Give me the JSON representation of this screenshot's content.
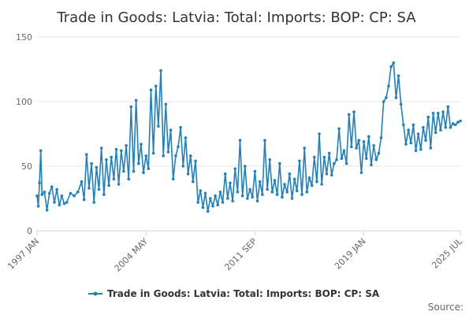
{
  "chart_data": {
    "type": "line",
    "title": "Trade in Goods: Latvia: Total: Imports: BOP: CP: SA",
    "xlabel": "",
    "ylabel": "",
    "ylim": [
      0,
      150
    ],
    "yticks": [
      0,
      50,
      100,
      150
    ],
    "x_tick_labels": [
      "1997 JAN",
      "2004 MAY",
      "2011 SEP",
      "2019 JAN",
      "2025 JUL"
    ],
    "x_tick_dates": [
      "1997-01",
      "2004-05",
      "2011-09",
      "2019-01",
      "2025-07"
    ],
    "x_start": "1997-01",
    "x_end": "2025-07",
    "grid": true,
    "legend_position": "bottom",
    "series": [
      {
        "name": "Trade in Goods: Latvia: Total: Imports: BOP: CP: SA",
        "color": "#1f7fc0",
        "points": [
          [
            "1997-01",
            27
          ],
          [
            "1997-02",
            19
          ],
          [
            "1997-03",
            37
          ],
          [
            "1997-04",
            62
          ],
          [
            "1997-05",
            28
          ],
          [
            "1997-07",
            30
          ],
          [
            "1997-09",
            16
          ],
          [
            "1997-11",
            29
          ],
          [
            "1998-01",
            34
          ],
          [
            "1998-03",
            22
          ],
          [
            "1998-05",
            32
          ],
          [
            "1998-07",
            20
          ],
          [
            "1998-09",
            27
          ],
          [
            "1998-11",
            21
          ],
          [
            "1999-01",
            22
          ],
          [
            "1999-04",
            29
          ],
          [
            "1999-07",
            27
          ],
          [
            "1999-10",
            30
          ],
          [
            "2000-01",
            38
          ],
          [
            "2000-03",
            24
          ],
          [
            "2000-05",
            59
          ],
          [
            "2000-07",
            33
          ],
          [
            "2000-09",
            52
          ],
          [
            "2000-11",
            22
          ],
          [
            "2001-01",
            49
          ],
          [
            "2001-03",
            32
          ],
          [
            "2001-05",
            64
          ],
          [
            "2001-07",
            28
          ],
          [
            "2001-09",
            55
          ],
          [
            "2001-11",
            35
          ],
          [
            "2002-01",
            57
          ],
          [
            "2002-03",
            40
          ],
          [
            "2002-05",
            63
          ],
          [
            "2002-07",
            36
          ],
          [
            "2002-09",
            62
          ],
          [
            "2002-11",
            46
          ],
          [
            "2003-01",
            66
          ],
          [
            "2003-03",
            40
          ],
          [
            "2003-05",
            96
          ],
          [
            "2003-07",
            46
          ],
          [
            "2003-09",
            101
          ],
          [
            "2003-11",
            52
          ],
          [
            "2004-01",
            67
          ],
          [
            "2004-03",
            45
          ],
          [
            "2004-05",
            58
          ],
          [
            "2004-07",
            48
          ],
          [
            "2004-09",
            109
          ],
          [
            "2004-11",
            60
          ],
          [
            "2005-01",
            112
          ],
          [
            "2005-03",
            81
          ],
          [
            "2005-05",
            124
          ],
          [
            "2005-07",
            58
          ],
          [
            "2005-09",
            98
          ],
          [
            "2005-11",
            61
          ],
          [
            "2006-01",
            78
          ],
          [
            "2006-03",
            40
          ],
          [
            "2006-05",
            58
          ],
          [
            "2006-07",
            65
          ],
          [
            "2006-09",
            80
          ],
          [
            "2006-11",
            50
          ],
          [
            "2007-01",
            72
          ],
          [
            "2007-03",
            44
          ],
          [
            "2007-05",
            58
          ],
          [
            "2007-07",
            38
          ],
          [
            "2007-09",
            54
          ],
          [
            "2007-11",
            22
          ],
          [
            "2008-01",
            31
          ],
          [
            "2008-03",
            18
          ],
          [
            "2008-05",
            29
          ],
          [
            "2008-07",
            15
          ],
          [
            "2008-09",
            25
          ],
          [
            "2008-11",
            19
          ],
          [
            "2009-01",
            27
          ],
          [
            "2009-03",
            20
          ],
          [
            "2009-05",
            30
          ],
          [
            "2009-07",
            22
          ],
          [
            "2009-09",
            44
          ],
          [
            "2009-11",
            25
          ],
          [
            "2010-01",
            37
          ],
          [
            "2010-03",
            23
          ],
          [
            "2010-05",
            48
          ],
          [
            "2010-07",
            30
          ],
          [
            "2010-09",
            70
          ],
          [
            "2010-11",
            27
          ],
          [
            "2011-01",
            50
          ],
          [
            "2011-03",
            25
          ],
          [
            "2011-05",
            32
          ],
          [
            "2011-07",
            26
          ],
          [
            "2011-09",
            46
          ],
          [
            "2011-11",
            23
          ],
          [
            "2012-01",
            38
          ],
          [
            "2012-03",
            28
          ],
          [
            "2012-05",
            70
          ],
          [
            "2012-07",
            32
          ],
          [
            "2012-09",
            55
          ],
          [
            "2012-11",
            30
          ],
          [
            "2013-01",
            39
          ],
          [
            "2013-03",
            28
          ],
          [
            "2013-05",
            52
          ],
          [
            "2013-07",
            26
          ],
          [
            "2013-09",
            36
          ],
          [
            "2013-11",
            30
          ],
          [
            "2014-01",
            44
          ],
          [
            "2014-03",
            25
          ],
          [
            "2014-05",
            40
          ],
          [
            "2014-07",
            31
          ],
          [
            "2014-09",
            54
          ],
          [
            "2014-11",
            28
          ],
          [
            "2015-01",
            64
          ],
          [
            "2015-03",
            30
          ],
          [
            "2015-05",
            41
          ],
          [
            "2015-07",
            35
          ],
          [
            "2015-09",
            57
          ],
          [
            "2015-11",
            38
          ],
          [
            "2016-01",
            75
          ],
          [
            "2016-03",
            36
          ],
          [
            "2016-05",
            57
          ],
          [
            "2016-07",
            44
          ],
          [
            "2016-09",
            60
          ],
          [
            "2016-11",
            43
          ],
          [
            "2017-01",
            52
          ],
          [
            "2017-03",
            55
          ],
          [
            "2017-05",
            79
          ],
          [
            "2017-07",
            56
          ],
          [
            "2017-09",
            62
          ],
          [
            "2017-11",
            52
          ],
          [
            "2018-01",
            90
          ],
          [
            "2018-03",
            65
          ],
          [
            "2018-05",
            92
          ],
          [
            "2018-07",
            64
          ],
          [
            "2018-09",
            70
          ],
          [
            "2018-11",
            45
          ],
          [
            "2019-01",
            69
          ],
          [
            "2019-03",
            56
          ],
          [
            "2019-05",
            73
          ],
          [
            "2019-07",
            51
          ],
          [
            "2019-09",
            66
          ],
          [
            "2019-11",
            55
          ],
          [
            "2020-01",
            60
          ],
          [
            "2020-03",
            72
          ],
          [
            "2020-05",
            100
          ],
          [
            "2020-07",
            103
          ],
          [
            "2020-09",
            112
          ],
          [
            "2020-11",
            127
          ],
          [
            "2021-01",
            130
          ],
          [
            "2021-03",
            103
          ],
          [
            "2021-05",
            120
          ],
          [
            "2021-07",
            98
          ],
          [
            "2021-09",
            82
          ],
          [
            "2021-11",
            67
          ],
          [
            "2022-01",
            78
          ],
          [
            "2022-03",
            68
          ],
          [
            "2022-05",
            82
          ],
          [
            "2022-07",
            62
          ],
          [
            "2022-09",
            75
          ],
          [
            "2022-11",
            63
          ],
          [
            "2023-01",
            80
          ],
          [
            "2023-03",
            70
          ],
          [
            "2023-05",
            88
          ],
          [
            "2023-07",
            64
          ],
          [
            "2023-09",
            91
          ],
          [
            "2023-11",
            76
          ],
          [
            "2024-01",
            91
          ],
          [
            "2024-03",
            78
          ],
          [
            "2024-05",
            92
          ],
          [
            "2024-07",
            80
          ],
          [
            "2024-09",
            96
          ],
          [
            "2024-11",
            80
          ],
          [
            "2025-01",
            83
          ],
          [
            "2025-03",
            82
          ],
          [
            "2025-05",
            84
          ],
          [
            "2025-07",
            85
          ]
        ]
      }
    ]
  },
  "legend": {
    "label": "Trade in Goods: Latvia: Total: Imports: BOP: CP: SA"
  },
  "footer": {
    "source_label": "Source:"
  }
}
